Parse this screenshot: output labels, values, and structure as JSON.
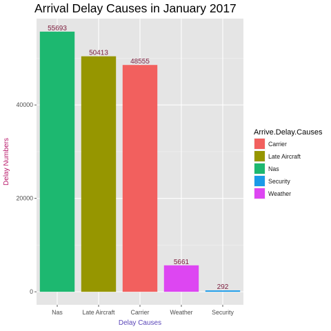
{
  "chart_data": {
    "type": "bar",
    "title": "Arrival Delay Causes in January 2017",
    "xlabel": "Delay Causes",
    "ylabel": "Delay Numbers",
    "categories": [
      "Nas",
      "Late Aircraft",
      "Carrier",
      "Weather",
      "Security"
    ],
    "values": [
      55693,
      50413,
      48555,
      5661,
      292
    ],
    "data_labels": [
      "55693",
      "50413",
      "48555",
      "5661",
      "292"
    ],
    "colors": [
      "#1db870",
      "#969600",
      "#f2605e",
      "#dd46f2",
      "#1a9ae8"
    ],
    "ylim": [
      -2785,
      58478
    ],
    "y_ticks": [
      0,
      20000,
      40000
    ],
    "y_tick_labels": [
      "0",
      "20000",
      "40000"
    ],
    "grid": true,
    "panel_background": "#e5e5e5",
    "label_color": "#7a1a3a",
    "axis_title_color_x": "#5a46b8",
    "axis_title_color_y": "#b8186a",
    "legend": {
      "title": "Arrive.Delay.Causes",
      "position": "right",
      "entries": [
        {
          "label": "Carrier",
          "color": "#f2605e"
        },
        {
          "label": "Late Aircraft",
          "color": "#969600"
        },
        {
          "label": "Nas",
          "color": "#1db870"
        },
        {
          "label": "Security",
          "color": "#1a9ae8"
        },
        {
          "label": "Weather",
          "color": "#dd46f2"
        }
      ]
    }
  }
}
